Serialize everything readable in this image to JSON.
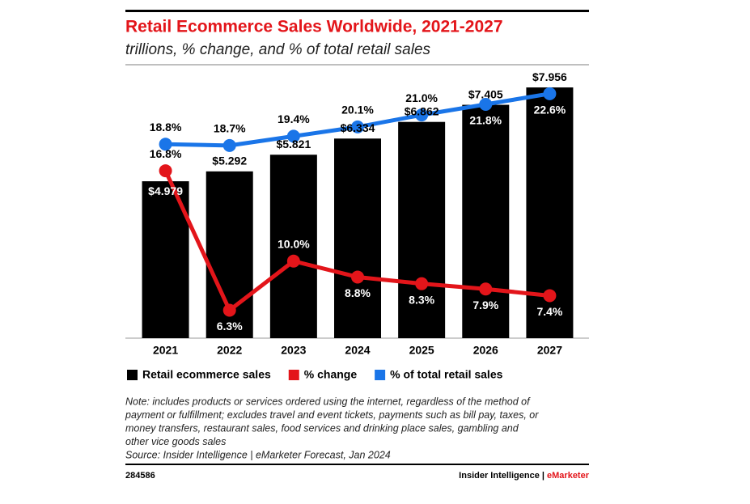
{
  "chart_data": {
    "type": "bar",
    "title": "Retail Ecommerce Sales Worldwide, 2021-2027",
    "subtitle": "trillions, % change, and % of total retail sales",
    "categories": [
      "2021",
      "2022",
      "2023",
      "2024",
      "2025",
      "2026",
      "2027"
    ],
    "series": [
      {
        "name": "Retail ecommerce sales",
        "type": "bar",
        "color": "#000000",
        "values": [
          4.979,
          5.292,
          5.821,
          6.334,
          6.862,
          7.405,
          7.956
        ],
        "value_labels": [
          "$4.979",
          "$5.292",
          "$5.821",
          "$6.334",
          "$6.862",
          "$7.405",
          "$7.956"
        ]
      },
      {
        "name": "% change",
        "type": "line",
        "axis": "y2",
        "color": "#e3151a",
        "values": [
          16.8,
          6.3,
          10.0,
          8.8,
          8.3,
          7.9,
          7.4
        ],
        "value_labels": [
          "16.8%",
          "6.3%",
          "10.0%",
          "8.8%",
          "8.3%",
          "7.9%",
          "7.4%"
        ]
      },
      {
        "name": "% of total retail sales",
        "type": "line",
        "axis": "y2",
        "color": "#1a75e8",
        "values": [
          18.8,
          18.7,
          19.4,
          20.1,
          21.0,
          21.8,
          22.6
        ],
        "value_labels": [
          "18.8%",
          "18.7%",
          "19.4%",
          "20.1%",
          "21.0%",
          "21.8%",
          "22.6%"
        ]
      }
    ],
    "ylim": [
      0,
      8.6
    ],
    "y2lim": [
      4.2,
      24.6
    ],
    "legend": "bottom"
  },
  "note": [
    "Note: includes products or services ordered using the internet, regardless of the method of",
    "payment or fulfillment; excludes travel and event tickets, payments such as bill pay, taxes, or",
    "money transfers, restaurant sales, food services and drinking place sales, gambling and",
    "other vice goods sales"
  ],
  "source": "Source: Insider Intelligence | eMarketer Forecast, Jan 2024",
  "footer": {
    "id": "284586",
    "brand": "Insider Intelligence |",
    "brand_accent": "eMarketer"
  }
}
